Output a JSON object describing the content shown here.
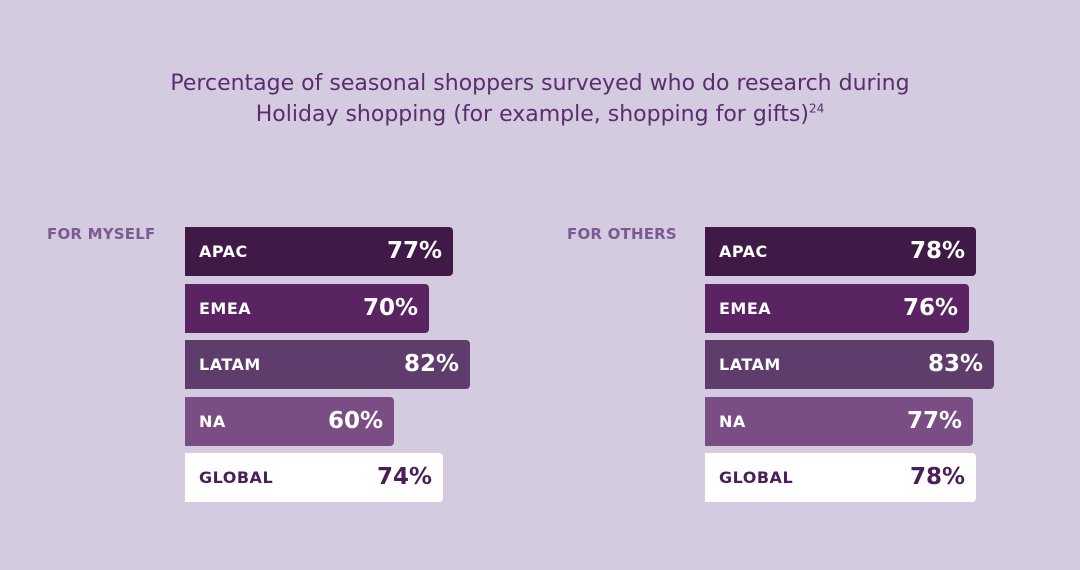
{
  "title": {
    "line1": "Percentage of seasonal shoppers surveyed who do research during",
    "line2": "Holiday shopping (for example, shopping for gifts)",
    "footnote": "24"
  },
  "chart_data": [
    {
      "type": "bar",
      "orientation": "horizontal",
      "panel_label": "FOR MYSELF",
      "categories": [
        "APAC",
        "EMEA",
        "LATAM",
        "NA",
        "GLOBAL"
      ],
      "values": [
        77,
        70,
        82,
        60,
        74
      ],
      "value_labels": [
        "77%",
        "70%",
        "82%",
        "60%",
        "74%"
      ],
      "colors": [
        "#3f1a46",
        "#5a2463",
        "#5e3c6c",
        "#7a4d84",
        "#ffffff"
      ],
      "label_colors": [
        "#ffffff",
        "#ffffff",
        "#ffffff",
        "#ffffff",
        "#4a1e57"
      ]
    },
    {
      "type": "bar",
      "orientation": "horizontal",
      "panel_label": "FOR OTHERS",
      "categories": [
        "APAC",
        "EMEA",
        "LATAM",
        "NA",
        "GLOBAL"
      ],
      "values": [
        78,
        76,
        83,
        77,
        78
      ],
      "value_labels": [
        "78%",
        "76%",
        "83%",
        "77%",
        "78%"
      ],
      "colors": [
        "#3f1a46",
        "#5a2463",
        "#5e3c6c",
        "#7a4d84",
        "#ffffff"
      ],
      "label_colors": [
        "#ffffff",
        "#ffffff",
        "#ffffff",
        "#ffffff",
        "#4a1e57"
      ]
    }
  ]
}
